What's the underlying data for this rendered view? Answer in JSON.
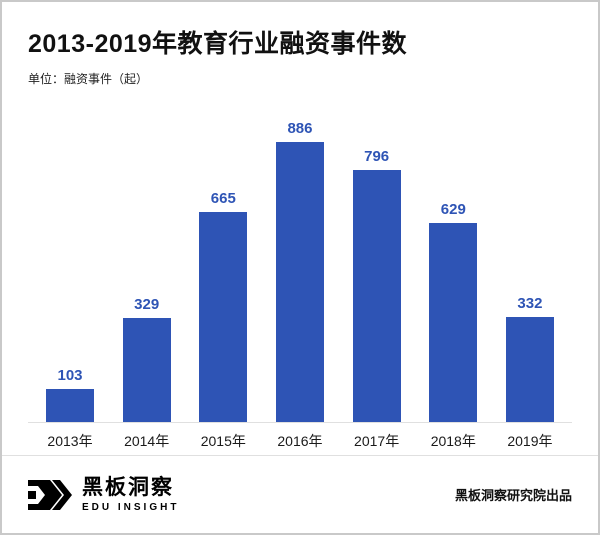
{
  "title": "2013-2019年教育行业融资事件数",
  "unit_label": "单位：融资事件（起）",
  "chart_data": {
    "type": "bar",
    "title": "2013-2019年教育行业融资事件数",
    "categories": [
      "2013年",
      "2014年",
      "2015年",
      "2016年",
      "2017年",
      "2018年",
      "2019年"
    ],
    "values": [
      103,
      329,
      665,
      886,
      796,
      629,
      332
    ],
    "xlabel": "",
    "ylabel": "融资事件（起）",
    "ylim": [
      0,
      900
    ],
    "grid": false,
    "legend": "none",
    "bar_color": "#2e54b5",
    "value_label_color": "#2e54b5"
  },
  "footer": {
    "brand_name": "黑板洞察",
    "brand_sub": "EDU INSIGHT",
    "credit": "黑板洞察研究院出品"
  },
  "colors": {
    "bar": "#2e54b5",
    "title": "#111111",
    "border": "#c9c9c9",
    "background": "#ffffff"
  }
}
